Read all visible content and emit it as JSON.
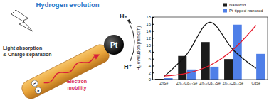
{
  "chart_data": {
    "type": "bar",
    "y_label": "H₂ evolution (mmol/h)",
    "categories": [
      "ZnSe",
      "Zn₀.₈Cd₀.₂Se",
      "Zn₀.₆Cd₀.₄Se",
      "Zn₀.₄Cd₀.₆Se",
      "CdSe"
    ],
    "series": [
      {
        "name": "Nanorod",
        "color": "#1c1c1c",
        "values": [
          0.2,
          6.8,
          10.8,
          5.9,
          0
        ]
      },
      {
        "name": "Pt-tipped nanorod",
        "color": "#4f7fe8",
        "values": [
          0.4,
          2.9,
          3.7,
          15.8,
          7.4
        ]
      },
      {
        "type": "line",
        "color": "#111111",
        "values": [
          0.8,
          7.3,
          16.5,
          8.6,
          3.2
        ]
      },
      {
        "type": "line",
        "color": "#e8192c",
        "values": [
          1.0,
          1.8,
          4.1,
          8.6,
          15.6
        ]
      }
    ],
    "ylim": [
      0,
      18
    ],
    "yticks": [
      0,
      2,
      4,
      6,
      8,
      10,
      12,
      14,
      16,
      18
    ],
    "grid": false,
    "legend": "upper right"
  },
  "schematic": {
    "title": "Hydrogen evolution",
    "product": "H₂",
    "reactant": "H⁺",
    "cocatalyst": "Pt",
    "light_label": [
      "Light absorption",
      "& Charge separation"
    ],
    "electron_label": [
      "Electron",
      "mobility"
    ],
    "charges": [
      "−",
      "+"
    ]
  }
}
